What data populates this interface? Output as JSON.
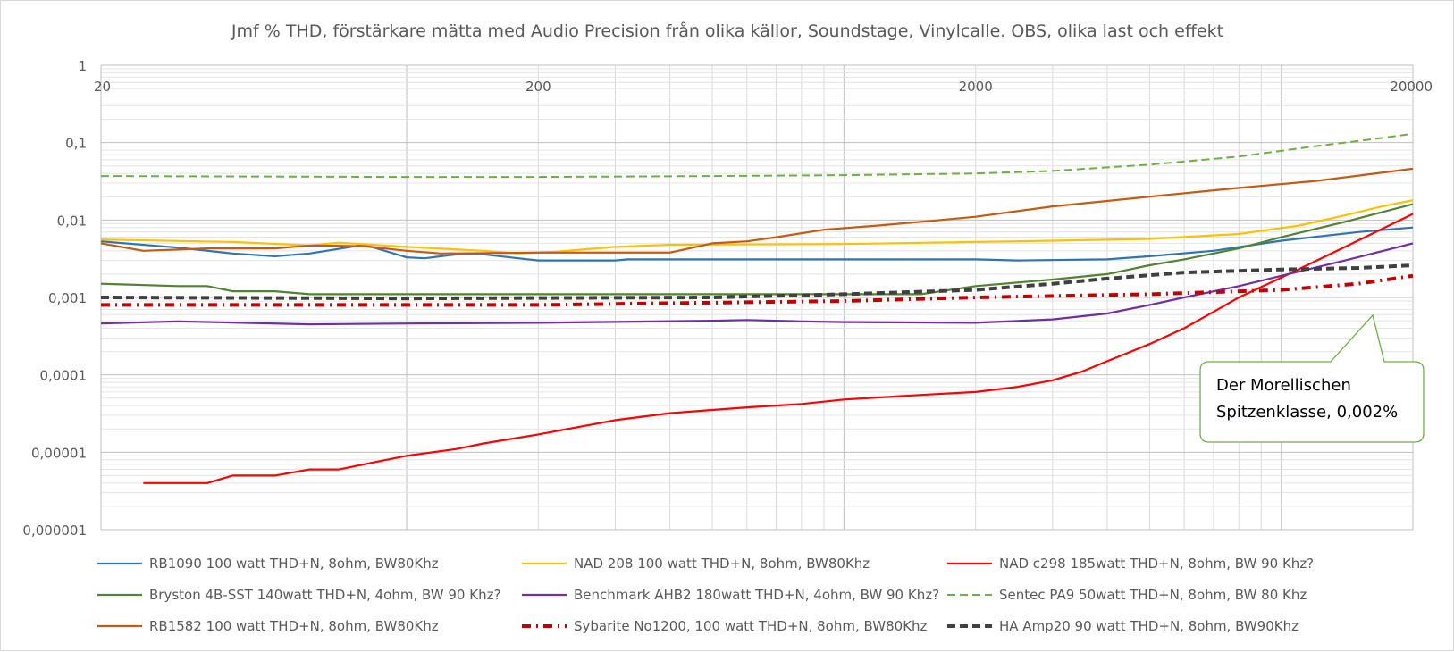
{
  "chart_data": {
    "type": "line",
    "title": "Jmf % THD, förstärkare mätta med Audio Precision från olika källor, Soundstage, Vinylcalle. OBS, olika last och effekt",
    "xlabel": "",
    "ylabel": "",
    "x_scale": "log",
    "y_scale": "log",
    "xlim": [
      20,
      20000
    ],
    "ylim": [
      1e-06,
      1
    ],
    "x_ticks": [
      "20",
      "200",
      "2000",
      "20000"
    ],
    "y_ticks": [
      "1",
      "0,1",
      "0,01",
      "0,001",
      "0,0001",
      "0,00001",
      "0,000001"
    ],
    "grid": true,
    "legend_position": "bottom",
    "series": [
      {
        "name": "RB1090 100 watt THD+N, 8ohm, BW80Khz",
        "color": "#2e75b6",
        "style": "solid",
        "points": [
          [
            20,
            0.0053
          ],
          [
            30,
            0.0044
          ],
          [
            40,
            0.0037
          ],
          [
            50,
            0.0034
          ],
          [
            60,
            0.0037
          ],
          [
            80,
            0.0048
          ],
          [
            100,
            0.0033
          ],
          [
            110,
            0.0032
          ],
          [
            130,
            0.0036
          ],
          [
            150,
            0.0036
          ],
          [
            180,
            0.0032
          ],
          [
            200,
            0.003
          ],
          [
            300,
            0.003
          ],
          [
            320,
            0.0031
          ],
          [
            2000,
            0.0031
          ],
          [
            2500,
            0.003
          ],
          [
            4000,
            0.0031
          ],
          [
            5000,
            0.0034
          ],
          [
            7000,
            0.004
          ],
          [
            10000,
            0.0054
          ],
          [
            15000,
            0.007
          ],
          [
            20000,
            0.008
          ]
        ]
      },
      {
        "name": "NAD 208 100 watt THD+N, 8ohm, BW80Khz",
        "color": "#ffc000",
        "style": "solid",
        "points": [
          [
            20,
            0.0056
          ],
          [
            40,
            0.0052
          ],
          [
            60,
            0.0047
          ],
          [
            70,
            0.0051
          ],
          [
            100,
            0.0045
          ],
          [
            150,
            0.004
          ],
          [
            180,
            0.0037
          ],
          [
            220,
            0.0039
          ],
          [
            300,
            0.0045
          ],
          [
            400,
            0.0048
          ],
          [
            1000,
            0.0049
          ],
          [
            2000,
            0.0052
          ],
          [
            3000,
            0.0054
          ],
          [
            5000,
            0.0057
          ],
          [
            8000,
            0.0066
          ],
          [
            11000,
            0.0085
          ],
          [
            14000,
            0.0115
          ],
          [
            17000,
            0.015
          ],
          [
            20000,
            0.018
          ]
        ]
      },
      {
        "name": "NAD c298 185watt THD+N, 8ohm, BW 90 Khz?",
        "color": "#ff0000",
        "style": "solid",
        "points": [
          [
            25,
            4e-06
          ],
          [
            35,
            4e-06
          ],
          [
            40,
            5e-06
          ],
          [
            50,
            5e-06
          ],
          [
            60,
            6e-06
          ],
          [
            70,
            6e-06
          ],
          [
            80,
            7e-06
          ],
          [
            100,
            9e-06
          ],
          [
            130,
            1.1e-05
          ],
          [
            150,
            1.3e-05
          ],
          [
            200,
            1.7e-05
          ],
          [
            300,
            2.6e-05
          ],
          [
            400,
            3.2e-05
          ],
          [
            600,
            3.8e-05
          ],
          [
            800,
            4.2e-05
          ],
          [
            1000,
            4.8e-05
          ],
          [
            1500,
            5.5e-05
          ],
          [
            2000,
            6e-05
          ],
          [
            2500,
            7e-05
          ],
          [
            3000,
            8.5e-05
          ],
          [
            3500,
            0.00011
          ],
          [
            4000,
            0.00015
          ],
          [
            5000,
            0.00025
          ],
          [
            6000,
            0.0004
          ],
          [
            7000,
            0.00065
          ],
          [
            8000,
            0.001
          ],
          [
            10000,
            0.0018
          ],
          [
            14000,
            0.0045
          ],
          [
            20000,
            0.012
          ]
        ]
      },
      {
        "name": "Bryston 4B-SST 140watt THD+N, 4ohm, BW 90 Khz?",
        "color": "#548235",
        "style": "solid",
        "points": [
          [
            20,
            0.0015
          ],
          [
            30,
            0.0014
          ],
          [
            35,
            0.0014
          ],
          [
            40,
            0.0012
          ],
          [
            50,
            0.0012
          ],
          [
            60,
            0.0011
          ],
          [
            1500,
            0.0011
          ],
          [
            2000,
            0.0014
          ],
          [
            3000,
            0.0017
          ],
          [
            4000,
            0.002
          ],
          [
            5000,
            0.0026
          ],
          [
            6000,
            0.0031
          ],
          [
            8000,
            0.0043
          ],
          [
            10000,
            0.006
          ],
          [
            14000,
            0.0095
          ],
          [
            20000,
            0.016
          ]
        ]
      },
      {
        "name": "Benchmark AHB2 180watt THD+N, 4ohm, BW 90 Khz?",
        "color": "#7030a0",
        "style": "solid",
        "points": [
          [
            20,
            0.00046
          ],
          [
            30,
            0.00049
          ],
          [
            60,
            0.00045
          ],
          [
            100,
            0.00046
          ],
          [
            200,
            0.00047
          ],
          [
            500,
            0.0005
          ],
          [
            600,
            0.00051
          ],
          [
            800,
            0.00049
          ],
          [
            1000,
            0.00048
          ],
          [
            2000,
            0.00047
          ],
          [
            3000,
            0.00052
          ],
          [
            4000,
            0.00062
          ],
          [
            5000,
            0.0008
          ],
          [
            6000,
            0.001
          ],
          [
            8000,
            0.0014
          ],
          [
            10000,
            0.0019
          ],
          [
            14000,
            0.003
          ],
          [
            20000,
            0.005
          ]
        ]
      },
      {
        "name": "Sentec PA9 50watt THD+N, 8ohm, BW 80 Khz",
        "color": "#70ad47",
        "style": "dashed",
        "points": [
          [
            20,
            0.037
          ],
          [
            100,
            0.036
          ],
          [
            200,
            0.036
          ],
          [
            500,
            0.037
          ],
          [
            1000,
            0.038
          ],
          [
            2000,
            0.04
          ],
          [
            3000,
            0.043
          ],
          [
            5000,
            0.052
          ],
          [
            8000,
            0.066
          ],
          [
            12000,
            0.09
          ],
          [
            16000,
            0.11
          ],
          [
            20000,
            0.13
          ]
        ]
      },
      {
        "name": "RB1582 100 watt THD+N, 8ohm, BW80Khz",
        "color": "#c55a11",
        "style": "solid",
        "points": [
          [
            20,
            0.005
          ],
          [
            25,
            0.004
          ],
          [
            35,
            0.0043
          ],
          [
            50,
            0.0043
          ],
          [
            60,
            0.0047
          ],
          [
            80,
            0.0046
          ],
          [
            100,
            0.004
          ],
          [
            120,
            0.0037
          ],
          [
            200,
            0.0038
          ],
          [
            400,
            0.0038
          ],
          [
            500,
            0.005
          ],
          [
            600,
            0.0053
          ],
          [
            700,
            0.006
          ],
          [
            900,
            0.0075
          ],
          [
            1200,
            0.0085
          ],
          [
            1500,
            0.0095
          ],
          [
            2000,
            0.011
          ],
          [
            3000,
            0.015
          ],
          [
            5000,
            0.02
          ],
          [
            8000,
            0.026
          ],
          [
            12000,
            0.032
          ],
          [
            20000,
            0.046
          ]
        ]
      },
      {
        "name": "Sybarite No1200, 100 watt THD+N, 8ohm, BW80Khz",
        "color": "#c00000",
        "style": "dashdot",
        "points": [
          [
            20,
            0.0008
          ],
          [
            200,
            0.0008
          ],
          [
            1000,
            0.0009
          ],
          [
            2000,
            0.001
          ],
          [
            5000,
            0.0011
          ],
          [
            10000,
            0.00125
          ],
          [
            15000,
            0.0015
          ],
          [
            20000,
            0.0019
          ]
        ]
      },
      {
        "name": "HA Amp20 90 watt THD+N, 8ohm, BW90Khz",
        "color": "#404040",
        "style": "dashed",
        "points": [
          [
            20,
            0.001
          ],
          [
            100,
            0.00097
          ],
          [
            500,
            0.001
          ],
          [
            1000,
            0.0011
          ],
          [
            2000,
            0.00125
          ],
          [
            3000,
            0.0015
          ],
          [
            4000,
            0.00175
          ],
          [
            6000,
            0.0021
          ],
          [
            10000,
            0.0023
          ],
          [
            15000,
            0.0024
          ],
          [
            20000,
            0.0026
          ]
        ]
      }
    ],
    "annotation": {
      "text_line1": "Der Morellischen",
      "text_line2": "Spitzenklasse, 0,002%",
      "color": "#70ad47"
    }
  }
}
